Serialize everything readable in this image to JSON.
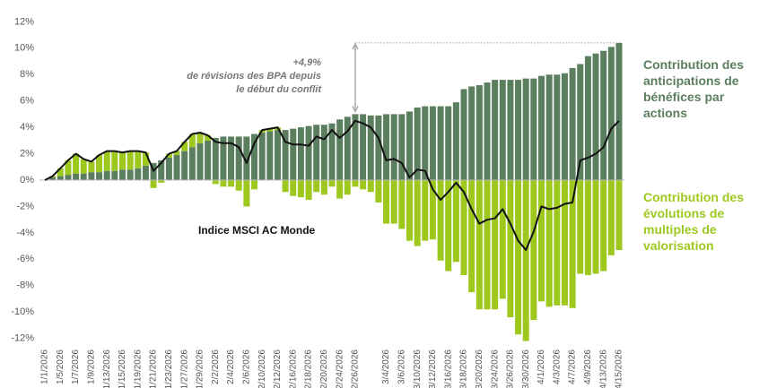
{
  "chart_data": {
    "type": "bar",
    "categories": [
      "1/1/2026",
      null,
      "1/5/2026",
      null,
      "1/7/2026",
      null,
      "1/9/2026",
      null,
      "1/13/2026",
      null,
      "1/15/2026",
      null,
      "1/19/2026",
      null,
      "1/21/2026",
      null,
      "1/23/2026",
      null,
      "1/27/2026",
      null,
      "1/29/2026",
      null,
      "2/2/2026",
      null,
      "2/4/2026",
      null,
      "2/6/2026",
      null,
      "2/10/2026",
      null,
      "2/12/2026",
      null,
      "2/16/2026",
      null,
      "2/18/2026",
      null,
      "2/20/2026",
      null,
      "2/24/2026",
      null,
      "2/26/2026",
      null,
      null,
      null,
      "3/4/2026",
      null,
      "3/6/2026",
      null,
      "3/10/2026",
      null,
      "3/12/2026",
      null,
      "3/16/2026",
      null,
      "3/18/2026",
      null,
      "3/20/2026",
      null,
      "3/24/2026",
      null,
      "3/26/2026",
      null,
      "3/30/2026",
      null,
      "4/1/2026",
      null,
      "4/3/2026",
      null,
      "4/7/2026",
      null,
      "4/9/2026",
      null,
      "4/13/2026",
      null,
      "4/15/2026"
    ],
    "series": [
      {
        "name": "Contribution des anticipations de bénéfices par actions",
        "type": "bar",
        "color": "#5b7f5e",
        "values": [
          0,
          0.2,
          0.3,
          0.4,
          0.5,
          0.5,
          0.6,
          0.6,
          0.7,
          0.7,
          0.8,
          0.8,
          0.9,
          1.1,
          1.3,
          1.5,
          1.7,
          1.9,
          2.2,
          2.5,
          2.8,
          3.0,
          3.2,
          3.3,
          3.3,
          3.3,
          3.3,
          3.5,
          3.6,
          3.7,
          3.8,
          3.8,
          3.9,
          4.0,
          4.1,
          4.2,
          4.2,
          4.3,
          4.6,
          4.8,
          5.0,
          5.0,
          4.9,
          4.9,
          5.0,
          5.0,
          5.0,
          5.2,
          5.5,
          5.6,
          5.6,
          5.6,
          5.6,
          5.9,
          6.9,
          7.1,
          7.2,
          7.4,
          7.6,
          7.6,
          7.6,
          7.6,
          7.7,
          7.7,
          7.9,
          8.0,
          8.0,
          8.1,
          8.5,
          8.8,
          9.4,
          9.6,
          9.8,
          10.1,
          10.4
        ]
      },
      {
        "name": "Contribution des évolutions de multiples de valorisation",
        "type": "bar",
        "color": "#9dc91e",
        "values": [
          0,
          0.1,
          0.6,
          1.1,
          1.5,
          1.1,
          0.8,
          1.3,
          1.5,
          1.5,
          1.3,
          1.4,
          1.3,
          1.0,
          -0.6,
          -0.2,
          0.3,
          0.3,
          0.7,
          1.0,
          0.8,
          0.4,
          -0.3,
          -0.5,
          -0.5,
          -0.8,
          -2.0,
          -0.7,
          0.2,
          0.2,
          0.2,
          -0.9,
          -1.2,
          -1.3,
          -1.5,
          -0.9,
          -1.1,
          -0.5,
          -1.4,
          -1.1,
          -0.5,
          -0.7,
          -0.9,
          -1.7,
          -3.3,
          -3.3,
          -3.7,
          -4.6,
          -5.0,
          -4.6,
          -4.5,
          -6.1,
          -6.9,
          -6.2,
          -7.2,
          -8.5,
          -9.8,
          -9.8,
          -9.8,
          -9.0,
          -10.4,
          -11.7,
          -12.2,
          -10.6,
          -9.2,
          -9.6,
          -9.5,
          -9.5,
          -9.7,
          -7.1,
          -7.2,
          -7.1,
          -6.9,
          -5.7,
          -5.3
        ]
      },
      {
        "name": "Indice MSCI AC Monde",
        "type": "line",
        "color": "#111111",
        "values": [
          0,
          0.3,
          0.9,
          1.5,
          2.0,
          1.6,
          1.4,
          1.9,
          2.2,
          2.2,
          2.1,
          2.2,
          2.2,
          2.1,
          0.7,
          1.3,
          2.0,
          2.2,
          2.9,
          3.5,
          3.6,
          3.4,
          2.9,
          2.8,
          2.8,
          2.5,
          1.3,
          2.8,
          3.8,
          3.9,
          4.0,
          2.9,
          2.7,
          2.7,
          2.6,
          3.3,
          3.1,
          3.8,
          3.2,
          3.7,
          4.5,
          4.3,
          4.0,
          3.2,
          1.5,
          1.6,
          1.3,
          0.2,
          0.8,
          0.7,
          -0.7,
          -1.5,
          -0.9,
          -0.2,
          -0.9,
          -2.2,
          -3.3,
          -3.0,
          -2.9,
          -2.2,
          -3.3,
          -4.6,
          -5.3,
          -3.9,
          -2.0,
          -2.2,
          -2.1,
          -1.8,
          -1.7,
          1.5,
          1.7,
          2.0,
          2.5,
          3.9,
          4.5
        ]
      }
    ],
    "annotation_value": "+4,9%",
    "annotation": "de révisions des BPA depuis le début du conflit",
    "ylim": [
      -12.5,
      12.5
    ],
    "yticks": [
      {
        "value": -12,
        "label": "-12%"
      },
      {
        "value": -10,
        "label": "-10%"
      },
      {
        "value": -8,
        "label": "-8%"
      },
      {
        "value": -6,
        "label": "-6%"
      },
      {
        "value": -4,
        "label": "-4%"
      },
      {
        "value": -2,
        "label": "-2%"
      },
      {
        "value": 0,
        "label": "0%"
      },
      {
        "value": 2,
        "label": "2%"
      },
      {
        "value": 4,
        "label": "4%"
      },
      {
        "value": 6,
        "label": "6%"
      },
      {
        "value": 8,
        "label": "8%"
      },
      {
        "value": 10,
        "label": "10%"
      },
      {
        "value": 12,
        "label": "12%"
      }
    ],
    "grid": false
  }
}
